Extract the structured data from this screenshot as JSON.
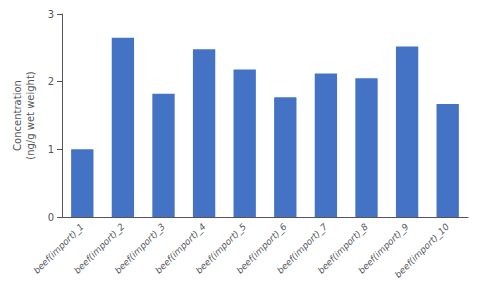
{
  "chart_data": {
    "type": "bar",
    "categories": [
      "beef(import)_1",
      "beef(import)_2",
      "beef(import)_3",
      "beef(import)_4",
      "beef(import)_5",
      "beef(import)_6",
      "beef(import)_7",
      "beef(import)_8",
      "beef(import)_9",
      "beef(import)_10"
    ],
    "values": [
      1.0,
      2.65,
      1.82,
      2.48,
      2.18,
      1.77,
      2.12,
      2.05,
      2.52,
      1.67
    ],
    "color": "#4472C4",
    "ylabel": "Concentration\n(ng/g wet weight)",
    "ylim": [
      0,
      3
    ],
    "yticks": [
      0,
      1,
      2,
      3
    ],
    "grid": false
  }
}
